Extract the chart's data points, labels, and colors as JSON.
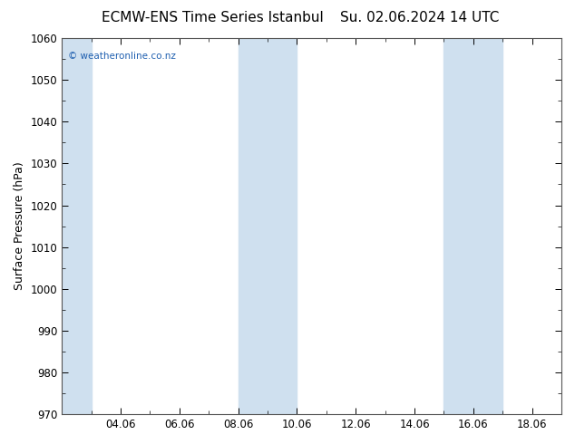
{
  "title_left": "ECMW-ENS Time Series Istanbul",
  "title_right": "Su. 02.06.2024 14 UTC",
  "ylabel": "Surface Pressure (hPa)",
  "ylim": [
    970,
    1060
  ],
  "ytick_step": 10,
  "plot_bg_color": "#ffffff",
  "fig_bg_color": "#ffffff",
  "watermark": "© weatheronline.co.nz",
  "watermark_color": "#2060b0",
  "xtick_labels": [
    "04.06",
    "06.06",
    "08.06",
    "10.06",
    "12.06",
    "14.06",
    "16.06",
    "18.06"
  ],
  "xtick_positions": [
    4.0,
    6.0,
    8.0,
    10.0,
    12.0,
    14.0,
    16.0,
    18.0
  ],
  "xmin": 2.0,
  "xmax": 19.0,
  "shade_bands": [
    {
      "xmin": 2.0,
      "xmax": 3.0,
      "color": "#cfe0ef"
    },
    {
      "xmin": 8.0,
      "xmax": 9.0,
      "color": "#cfe0ef"
    },
    {
      "xmin": 9.0,
      "xmax": 10.0,
      "color": "#cfe0ef"
    },
    {
      "xmin": 15.0,
      "xmax": 16.0,
      "color": "#cfe0ef"
    },
    {
      "xmin": 16.0,
      "xmax": 17.0,
      "color": "#cfe0ef"
    }
  ],
  "title_fontsize": 11,
  "axis_label_fontsize": 9,
  "tick_fontsize": 8.5,
  "minor_tick_interval": 1.0,
  "ytick_minor_interval": 5
}
